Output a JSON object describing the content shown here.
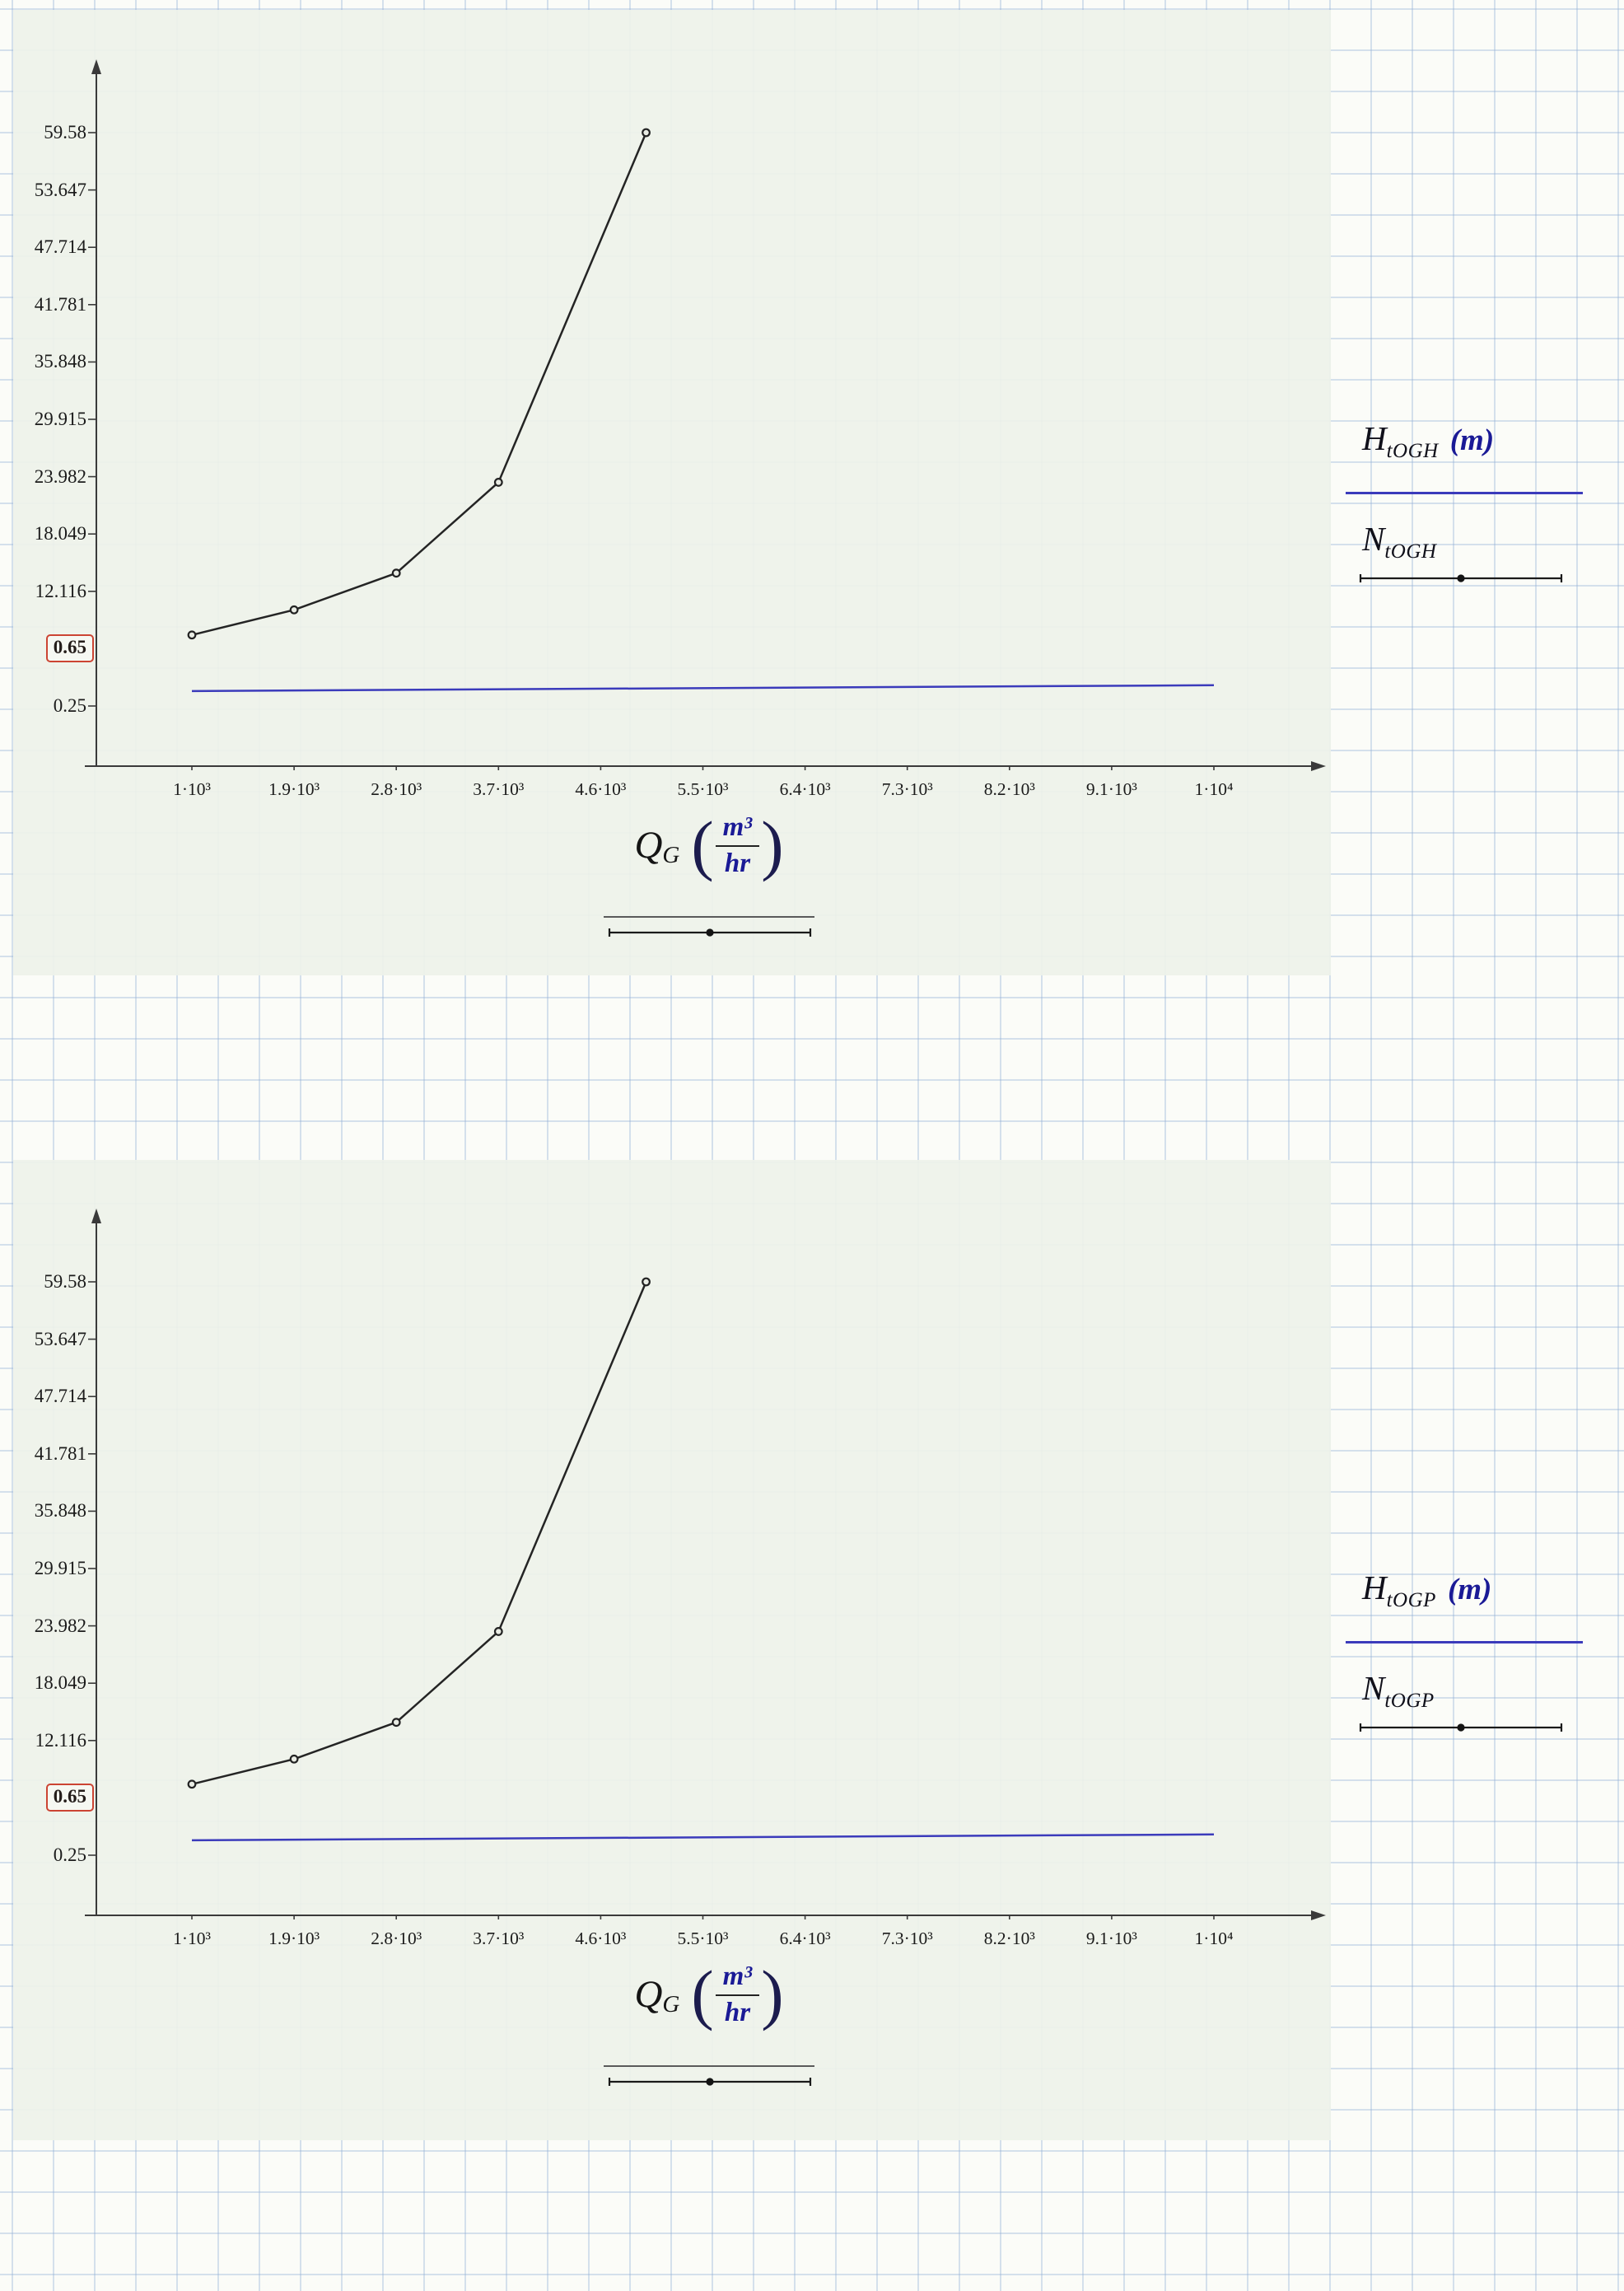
{
  "page": {
    "background_color": "#fbfcf8",
    "grid_color": "#94b2d6",
    "panel_color": "#eef2e9",
    "accent_blue": "#3b3bbb",
    "trace_black": "#242424",
    "marker_box_red": "#cc4433"
  },
  "charts": [
    {
      "y_ticks": [
        "59.58",
        "53.647",
        "47.714",
        "41.781",
        "35.848",
        "29.915",
        "23.982",
        "18.049",
        "12.116"
      ],
      "y_bottom": "0.25",
      "marker_label": "0.65",
      "x_ticks": [
        "1·10³",
        "1.9·10³",
        "2.8·10³",
        "3.7·10³",
        "4.6·10³",
        "5.5·10³",
        "6.4·10³",
        "7.3·10³",
        "8.2·10³",
        "9.1·10³",
        "1·10⁴"
      ],
      "legend": {
        "h_sym": "H",
        "h_sub": "tOGH",
        "h_unit": "(m)",
        "n_sym": "N",
        "n_sub": "tOGH"
      },
      "x_expr": {
        "sym": "Q",
        "sub": "G",
        "lp": "(",
        "rp": ")",
        "num": "m³",
        "den": "hr"
      }
    },
    {
      "y_ticks": [
        "59.58",
        "53.647",
        "47.714",
        "41.781",
        "35.848",
        "29.915",
        "23.982",
        "18.049",
        "12.116"
      ],
      "y_bottom": "0.25",
      "marker_label": "0.65",
      "x_ticks": [
        "1·10³",
        "1.9·10³",
        "2.8·10³",
        "3.7·10³",
        "4.6·10³",
        "5.5·10³",
        "6.4·10³",
        "7.3·10³",
        "8.2·10³",
        "9.1·10³",
        "1·10⁴"
      ],
      "legend": {
        "h_sym": "H",
        "h_sub": "tOGP",
        "h_unit": "(m)",
        "n_sym": "N",
        "n_sub": "tOGP"
      },
      "x_expr": {
        "sym": "Q",
        "sub": "G",
        "lp": "(",
        "rp": ")",
        "num": "m³",
        "den": "hr"
      }
    }
  ],
  "chart_data": [
    {
      "type": "line",
      "title": "",
      "xlabel": "Q_G (m³/hr)",
      "ylabel": "H_tOGH (m) / N_tOGH",
      "xlim": [
        1000,
        10000
      ],
      "ylim": [
        0.25,
        59.58
      ],
      "x_tick_values": [
        1000,
        1900,
        2800,
        3700,
        4600,
        5500,
        6400,
        7300,
        8200,
        9100,
        10000
      ],
      "y_tick_values": [
        59.58,
        53.647,
        47.714,
        41.781,
        35.848,
        29.915,
        23.982,
        18.049,
        12.116,
        0.25
      ],
      "marker_value": 0.65,
      "grid": false,
      "legend_position": "right",
      "series": [
        {
          "name": "H_tOGH",
          "unit": "m",
          "color": "#3b3bbb",
          "markers": false,
          "x": [
            1000,
            10000
          ],
          "y": [
            1.8,
            2.4
          ]
        },
        {
          "name": "N_tOGH",
          "color": "#242424",
          "markers": true,
          "x": [
            1000,
            1900,
            2800,
            3700,
            5000
          ],
          "y": [
            7.6,
            10.2,
            14.0,
            23.4,
            59.58
          ]
        }
      ]
    },
    {
      "type": "line",
      "title": "",
      "xlabel": "Q_G (m³/hr)",
      "ylabel": "H_tOGP (m) / N_tOGP",
      "xlim": [
        1000,
        10000
      ],
      "ylim": [
        0.25,
        59.58
      ],
      "x_tick_values": [
        1000,
        1900,
        2800,
        3700,
        4600,
        5500,
        6400,
        7300,
        8200,
        9100,
        10000
      ],
      "y_tick_values": [
        59.58,
        53.647,
        47.714,
        41.781,
        35.848,
        29.915,
        23.982,
        18.049,
        12.116,
        0.25
      ],
      "marker_value": 0.65,
      "grid": false,
      "legend_position": "right",
      "series": [
        {
          "name": "H_tOGP",
          "unit": "m",
          "color": "#3b3bbb",
          "markers": false,
          "x": [
            1000,
            10000
          ],
          "y": [
            1.8,
            2.4
          ]
        },
        {
          "name": "N_tOGP",
          "color": "#242424",
          "markers": true,
          "x": [
            1000,
            1900,
            2800,
            3700,
            5000
          ],
          "y": [
            7.6,
            10.2,
            14.0,
            23.4,
            59.58
          ]
        }
      ]
    }
  ]
}
